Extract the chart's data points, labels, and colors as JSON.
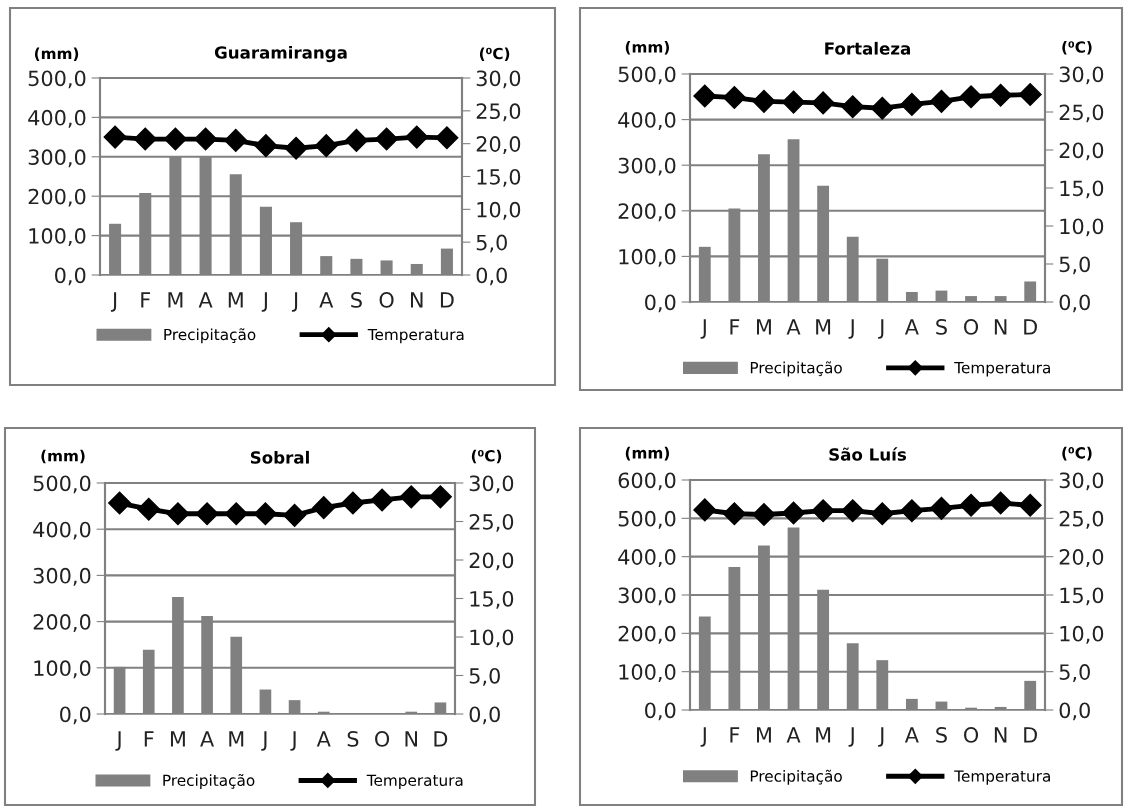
{
  "chart_data": [
    {
      "type": "bar",
      "title": "Guaramiranga",
      "ylabel": "(mm)",
      "y2label": "(⁰C)",
      "categories": [
        "J",
        "F",
        "M",
        "A",
        "M",
        "J",
        "J",
        "A",
        "S",
        "O",
        "N",
        "D"
      ],
      "series": [
        {
          "name": "Precipitação",
          "color": "#808080",
          "values": [
            130,
            208,
            300,
            300,
            256,
            173,
            134,
            48,
            41,
            37,
            28,
            67
          ]
        },
        {
          "name": "Temperatura",
          "type": "line",
          "axis": "y2",
          "color": "#000000",
          "marker": "diamond",
          "values": [
            21.0,
            20.7,
            20.7,
            20.7,
            20.5,
            19.7,
            19.3,
            19.7,
            20.5,
            20.7,
            21.0,
            20.9
          ]
        }
      ],
      "ylim": [
        0,
        500
      ],
      "yticks": [
        {
          "value": 0,
          "label": "0,0"
        },
        {
          "value": 100,
          "label": "100,0"
        },
        {
          "value": 200,
          "label": "200,0"
        },
        {
          "value": 300,
          "label": "300,0"
        },
        {
          "value": 400,
          "label": "400,0"
        },
        {
          "value": 500,
          "label": "500,0"
        }
      ],
      "y2lim": [
        0,
        30
      ],
      "y2ticks": [
        {
          "value": 0,
          "label": "0,0"
        },
        {
          "value": 5,
          "label": "5,0"
        },
        {
          "value": 10,
          "label": "10,0"
        },
        {
          "value": 15,
          "label": "15,0"
        },
        {
          "value": 20,
          "label": "20,0"
        },
        {
          "value": 25,
          "label": "25,0"
        },
        {
          "value": 30,
          "label": "30,0"
        }
      ],
      "grid": "y",
      "legend": "bottom"
    },
    {
      "type": "bar",
      "title": "Fortaleza",
      "ylabel": "(mm)",
      "y2label": "(⁰C)",
      "categories": [
        "J",
        "F",
        "M",
        "A",
        "M",
        "J",
        "J",
        "A",
        "S",
        "O",
        "N",
        "D"
      ],
      "series": [
        {
          "name": "Precipitação",
          "color": "#808080",
          "values": [
            121,
            205,
            324,
            357,
            255,
            143,
            95,
            22,
            25,
            13,
            13,
            45
          ]
        },
        {
          "name": "Temperatura",
          "type": "line",
          "axis": "y2",
          "color": "#000000",
          "marker": "diamond",
          "values": [
            27.1,
            26.9,
            26.4,
            26.3,
            26.2,
            25.7,
            25.5,
            26.0,
            26.4,
            27.0,
            27.2,
            27.3
          ]
        }
      ],
      "ylim": [
        0,
        500
      ],
      "yticks": [
        {
          "value": 0,
          "label": "0,0"
        },
        {
          "value": 100,
          "label": "100,0"
        },
        {
          "value": 200,
          "label": "200,0"
        },
        {
          "value": 300,
          "label": "300,0"
        },
        {
          "value": 400,
          "label": "400,0"
        },
        {
          "value": 500,
          "label": "500,0"
        }
      ],
      "y2lim": [
        0,
        30
      ],
      "y2ticks": [
        {
          "value": 0,
          "label": "0,0"
        },
        {
          "value": 5,
          "label": "5,0"
        },
        {
          "value": 10,
          "label": "10,0"
        },
        {
          "value": 15,
          "label": "15,0"
        },
        {
          "value": 20,
          "label": "20,0"
        },
        {
          "value": 25,
          "label": "25,0"
        },
        {
          "value": 30,
          "label": "30,0"
        }
      ],
      "grid": "y",
      "legend": "bottom"
    },
    {
      "type": "bar",
      "title": "Sobral",
      "ylabel": "(mm)",
      "y2label": "(⁰C)",
      "categories": [
        "J",
        "F",
        "M",
        "A",
        "M",
        "J",
        "J",
        "A",
        "S",
        "O",
        "N",
        "D"
      ],
      "series": [
        {
          "name": "Precipitação",
          "color": "#808080",
          "values": [
            102,
            139,
            253,
            212,
            167,
            53,
            30,
            5,
            0,
            0,
            5,
            25
          ]
        },
        {
          "name": "Temperatura",
          "type": "line",
          "axis": "y2",
          "color": "#000000",
          "marker": "diamond",
          "values": [
            27.4,
            26.6,
            26.0,
            26.0,
            26.0,
            26.0,
            25.8,
            26.8,
            27.4,
            27.8,
            28.2,
            28.2
          ]
        }
      ],
      "ylim": [
        0,
        500
      ],
      "yticks": [
        {
          "value": 0,
          "label": "0,0"
        },
        {
          "value": 100,
          "label": "100,0"
        },
        {
          "value": 200,
          "label": "200,0"
        },
        {
          "value": 300,
          "label": "300,0"
        },
        {
          "value": 400,
          "label": "400,0"
        },
        {
          "value": 500,
          "label": "500,0"
        }
      ],
      "y2lim": [
        0,
        30
      ],
      "y2ticks": [
        {
          "value": 0,
          "label": "0,0"
        },
        {
          "value": 5,
          "label": "5,0"
        },
        {
          "value": 10,
          "label": "10,0"
        },
        {
          "value": 15,
          "label": "15,0"
        },
        {
          "value": 20,
          "label": "20,0"
        },
        {
          "value": 25,
          "label": "25,0"
        },
        {
          "value": 30,
          "label": "30,0"
        }
      ],
      "grid": "y",
      "legend": "bottom"
    },
    {
      "type": "bar",
      "title": "São Luís",
      "ylabel": "(mm)",
      "y2label": "(⁰C)",
      "categories": [
        "J",
        "F",
        "M",
        "A",
        "M",
        "J",
        "J",
        "A",
        "S",
        "O",
        "N",
        "D"
      ],
      "series": [
        {
          "name": "Precipitação",
          "color": "#808080",
          "values": [
            244,
            373,
            429,
            476,
            314,
            174,
            130,
            29,
            22,
            6,
            8,
            76
          ]
        },
        {
          "name": "Temperatura",
          "type": "line",
          "axis": "y2",
          "color": "#000000",
          "marker": "diamond",
          "values": [
            26.1,
            25.6,
            25.5,
            25.7,
            26.0,
            26.0,
            25.6,
            26.0,
            26.3,
            26.7,
            27.0,
            26.7
          ]
        }
      ],
      "ylim": [
        0,
        600
      ],
      "yticks": [
        {
          "value": 0,
          "label": "0,0"
        },
        {
          "value": 100,
          "label": "100,0"
        },
        {
          "value": 200,
          "label": "200,0"
        },
        {
          "value": 300,
          "label": "300,0"
        },
        {
          "value": 400,
          "label": "400,0"
        },
        {
          "value": 500,
          "label": "500,0"
        },
        {
          "value": 600,
          "label": "600,0"
        }
      ],
      "y2lim": [
        0,
        30
      ],
      "y2ticks": [
        {
          "value": 0,
          "label": "0,0"
        },
        {
          "value": 5,
          "label": "5,0"
        },
        {
          "value": 10,
          "label": "10,0"
        },
        {
          "value": 15,
          "label": "15,0"
        },
        {
          "value": 20,
          "label": "20,0"
        },
        {
          "value": 25,
          "label": "25,0"
        },
        {
          "value": 30,
          "label": "30,0"
        }
      ],
      "grid": "y",
      "legend": "bottom"
    }
  ]
}
